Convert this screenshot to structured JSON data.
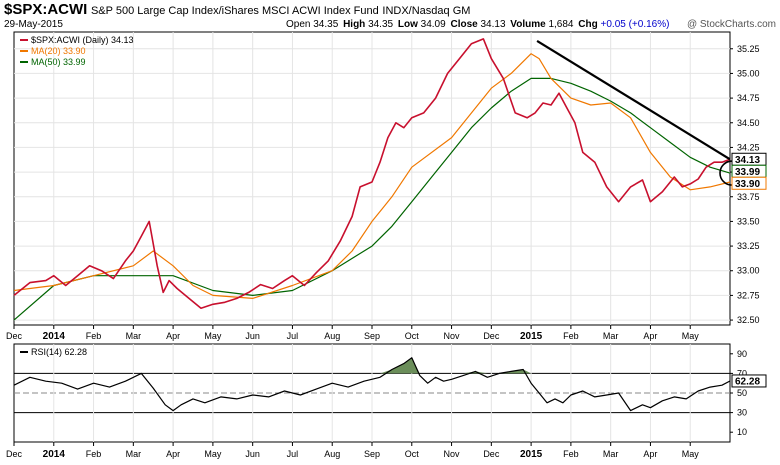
{
  "header": {
    "symbol": "$SPX:ACWI",
    "description": "S&P 500 Large Cap Index/iShares MSCI ACWI Index Fund",
    "exchange": "INDX/Nasdaq GM",
    "date": "29-May-2015",
    "ohlc": [
      {
        "label": "Open",
        "value": "34.35"
      },
      {
        "label": "High",
        "value": "34.35"
      },
      {
        "label": "Low",
        "value": "34.09"
      },
      {
        "label": "Close",
        "value": "34.13"
      },
      {
        "label": "Volume",
        "value": "1,684"
      },
      {
        "label": "Chg",
        "value": "+0.05 (+0.16%)"
      }
    ],
    "brand": "@ StockCharts.com"
  },
  "colors": {
    "price": "#c8102e",
    "ma20": "#f07800",
    "ma50": "#006400",
    "trendline": "#000000",
    "rsi": "#000000",
    "rsi_fill": "#6b8e5a"
  },
  "chart_data": [
    {
      "type": "line",
      "title": "$SPX:ACWI (Daily)",
      "xlabels": [
        "Dec",
        "2014",
        "Feb",
        "Mar",
        "Apr",
        "May",
        "Jun",
        "Jul",
        "Aug",
        "Sep",
        "Oct",
        "Nov",
        "Dec",
        "2015",
        "Feb",
        "Mar",
        "Apr",
        "May"
      ],
      "bold_xlabels": [
        "2014",
        "2015"
      ],
      "yticks": [
        "32.50",
        "32.75",
        "33.00",
        "33.25",
        "33.50",
        "33.75",
        "34.00",
        "34.25",
        "34.50",
        "34.75",
        "35.00",
        "35.25"
      ],
      "ylim": [
        32.45,
        35.42
      ],
      "legend": [
        {
          "name": "$SPX:ACWI (Daily) 34.13",
          "key": "price"
        },
        {
          "name": "MA(20) 33.90",
          "key": "ma20"
        },
        {
          "name": "MA(50) 33.99",
          "key": "ma50"
        }
      ],
      "last_value_tags": [
        {
          "text": "34.13",
          "value": 34.13,
          "key": "price"
        },
        {
          "text": "33.99",
          "value": 33.99,
          "key": "ma50"
        },
        {
          "text": "33.90",
          "value": 33.9,
          "key": "ma20"
        }
      ],
      "trendline": {
        "from": [
          13.15,
          35.33
        ],
        "to": [
          18.0,
          34.13
        ]
      },
      "series": [
        {
          "name": "$SPX:ACWI",
          "key": "price",
          "x": [
            0,
            0.4,
            0.8,
            1.0,
            1.3,
            1.6,
            1.9,
            2.2,
            2.5,
            2.8,
            3.0,
            3.2,
            3.4,
            3.6,
            3.75,
            3.9,
            4.1,
            4.4,
            4.7,
            5.0,
            5.3,
            5.6,
            5.9,
            6.2,
            6.5,
            6.8,
            7.0,
            7.3,
            7.6,
            7.9,
            8.2,
            8.5,
            8.7,
            9.0,
            9.2,
            9.4,
            9.6,
            9.8,
            10.0,
            10.3,
            10.6,
            10.9,
            11.2,
            11.5,
            11.8,
            12.0,
            12.3,
            12.6,
            12.9,
            13.1,
            13.3,
            13.5,
            13.7,
            13.9,
            14.1,
            14.3,
            14.6,
            14.9,
            15.2,
            15.5,
            15.8,
            16.0,
            16.3,
            16.6,
            16.8,
            17.0,
            17.2,
            17.4,
            17.6,
            17.8,
            18.0
          ],
          "y": [
            32.75,
            32.88,
            32.9,
            32.95,
            32.85,
            32.95,
            33.05,
            33.0,
            32.92,
            33.1,
            33.2,
            33.35,
            33.5,
            33.05,
            32.78,
            32.9,
            32.82,
            32.72,
            32.62,
            32.66,
            32.68,
            32.72,
            32.78,
            32.86,
            32.82,
            32.9,
            32.95,
            32.85,
            32.98,
            33.1,
            33.3,
            33.55,
            33.85,
            33.9,
            34.1,
            34.35,
            34.5,
            34.45,
            34.55,
            34.6,
            34.75,
            35.0,
            35.15,
            35.3,
            35.35,
            35.15,
            34.95,
            34.6,
            34.55,
            34.6,
            34.7,
            34.68,
            34.8,
            34.65,
            34.5,
            34.2,
            34.1,
            33.85,
            33.7,
            33.85,
            33.92,
            33.7,
            33.8,
            33.95,
            33.85,
            33.88,
            33.93,
            34.05,
            34.1,
            34.1,
            34.13
          ]
        },
        {
          "name": "MA(20)",
          "key": "ma20",
          "x": [
            0,
            1.0,
            2.0,
            3.0,
            3.5,
            4.0,
            4.5,
            5.0,
            6.0,
            7.0,
            8.0,
            8.5,
            9.0,
            9.5,
            10.0,
            11.0,
            12.0,
            12.5,
            13.0,
            13.2,
            13.5,
            14.0,
            14.5,
            15.0,
            15.5,
            16.0,
            16.5,
            17.0,
            17.5,
            18.0
          ],
          "y": [
            32.8,
            32.85,
            32.95,
            33.05,
            33.2,
            33.05,
            32.85,
            32.75,
            32.72,
            32.85,
            33.0,
            33.2,
            33.5,
            33.75,
            34.05,
            34.35,
            34.85,
            35.0,
            35.2,
            35.15,
            34.95,
            34.75,
            34.68,
            34.7,
            34.55,
            34.2,
            33.95,
            33.82,
            33.85,
            33.9
          ]
        },
        {
          "name": "MA(50)",
          "key": "ma50",
          "x": [
            0,
            1.0,
            2.0,
            3.0,
            4.0,
            5.0,
            6.0,
            7.0,
            8.0,
            9.0,
            9.5,
            10.0,
            10.5,
            11.0,
            11.5,
            12.0,
            12.5,
            13.0,
            13.5,
            14.0,
            14.5,
            15.0,
            15.5,
            16.0,
            16.5,
            17.0,
            17.5,
            18.0
          ],
          "y": [
            32.5,
            32.85,
            32.95,
            32.95,
            32.95,
            32.8,
            32.75,
            32.8,
            33.0,
            33.25,
            33.45,
            33.7,
            33.95,
            34.2,
            34.45,
            34.65,
            34.82,
            34.95,
            34.95,
            34.9,
            34.82,
            34.72,
            34.6,
            34.45,
            34.3,
            34.15,
            34.05,
            33.99
          ]
        }
      ]
    },
    {
      "type": "line",
      "title": "RSI(14) 62.28",
      "xlabels": [
        "Dec",
        "2014",
        "Feb",
        "Mar",
        "Apr",
        "May",
        "Jun",
        "Jul",
        "Aug",
        "Sep",
        "Oct",
        "Nov",
        "Dec",
        "2015",
        "Feb",
        "Mar",
        "Apr",
        "May"
      ],
      "bold_xlabels": [
        "2014",
        "2015"
      ],
      "yticks": [
        "10",
        "30",
        "50",
        "70",
        "90"
      ],
      "ylim": [
        0,
        100
      ],
      "reference_lines": [
        30,
        50,
        70
      ],
      "last_value_tag": {
        "text": "62.28",
        "value": 62.28
      },
      "series": [
        {
          "name": "RSI(14)",
          "key": "rsi",
          "x": [
            0,
            0.4,
            0.8,
            1.2,
            1.6,
            2.0,
            2.4,
            2.8,
            3.2,
            3.5,
            3.8,
            4.0,
            4.2,
            4.5,
            4.8,
            5.2,
            5.6,
            6.0,
            6.4,
            6.8,
            7.2,
            7.6,
            8.0,
            8.4,
            8.8,
            9.2,
            9.5,
            9.8,
            10.0,
            10.2,
            10.4,
            10.6,
            10.8,
            11.0,
            11.3,
            11.6,
            11.9,
            12.2,
            12.5,
            12.8,
            13.0,
            13.2,
            13.4,
            13.6,
            13.8,
            14.0,
            14.3,
            14.6,
            14.9,
            15.2,
            15.5,
            15.8,
            16.0,
            16.3,
            16.6,
            16.9,
            17.2,
            17.5,
            17.8,
            18.0
          ],
          "y": [
            58,
            66,
            62,
            60,
            54,
            60,
            56,
            62,
            70,
            55,
            38,
            32,
            38,
            44,
            40,
            46,
            44,
            48,
            46,
            52,
            48,
            54,
            60,
            56,
            62,
            66,
            74,
            80,
            86,
            68,
            60,
            66,
            62,
            64,
            68,
            72,
            66,
            70,
            72,
            74,
            60,
            50,
            40,
            44,
            40,
            48,
            52,
            46,
            48,
            50,
            32,
            38,
            35,
            42,
            46,
            44,
            52,
            56,
            58,
            62.28
          ]
        }
      ]
    }
  ]
}
